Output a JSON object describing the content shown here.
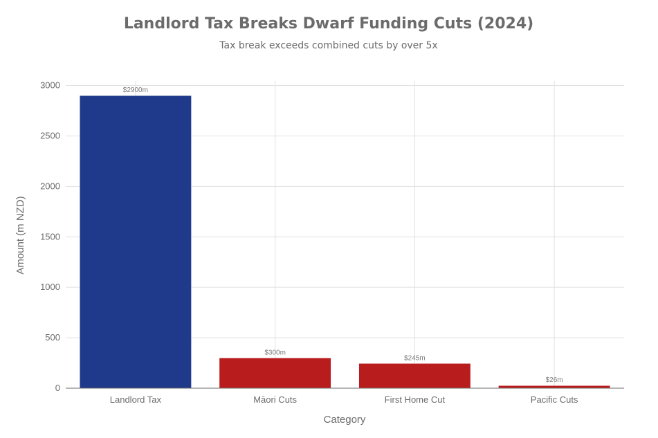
{
  "chart_data": {
    "type": "bar",
    "title": "Landlord Tax Breaks Dwarf Funding Cuts (2024)",
    "subtitle": "Tax break exceeds combined cuts by over 5x",
    "xlabel": "Category",
    "ylabel": "Amount (m NZD)",
    "categories": [
      "Landlord Tax",
      "Māori Cuts",
      "First Home Cut",
      "Pacific Cuts"
    ],
    "values": [
      2900,
      300,
      245,
      26
    ],
    "data_labels": [
      "$2900m",
      "$300m",
      "$245m",
      "$26m"
    ],
    "colors": [
      "#1f3a8a",
      "#b91c1c",
      "#b91c1c",
      "#b91c1c"
    ],
    "ylim": [
      0,
      3045
    ],
    "yticks": [
      0,
      500,
      1000,
      1500,
      2000,
      2500,
      3000
    ],
    "grid": true,
    "legend": "none"
  }
}
